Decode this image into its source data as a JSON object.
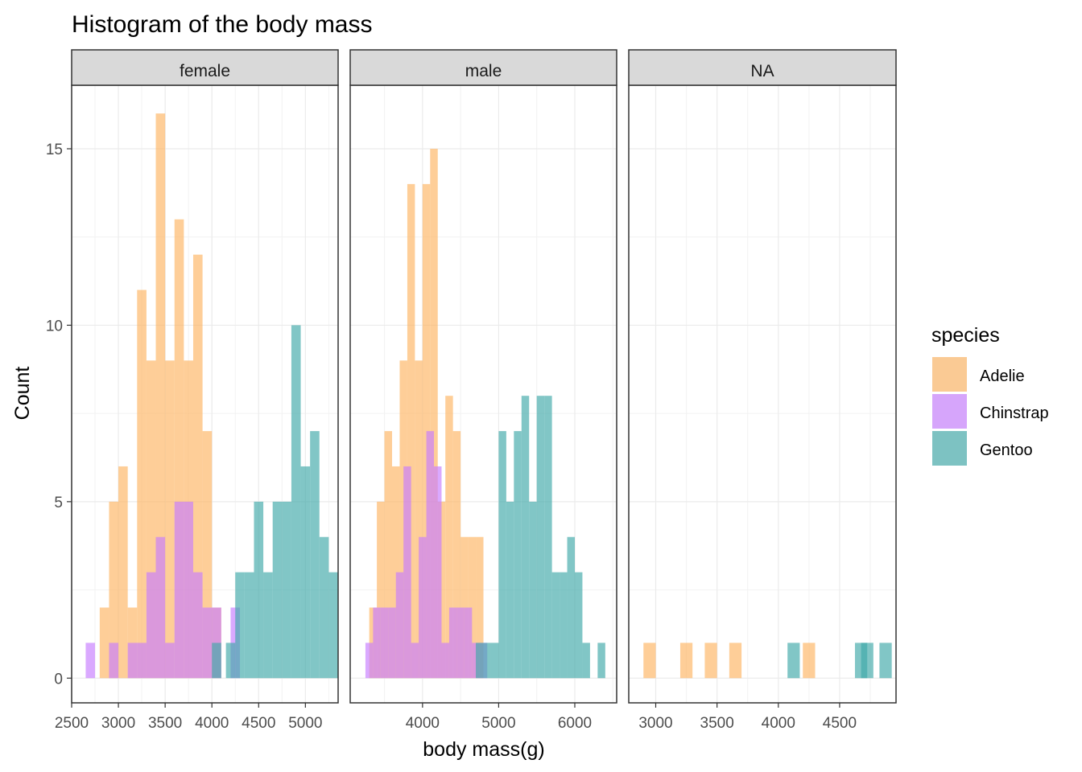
{
  "chart_data": {
    "type": "histogram",
    "title": "Histogram of the body mass",
    "xlabel": "body mass(g)",
    "ylabel": "Count",
    "ylim": [
      -0.7,
      16.8
    ],
    "y_ticks": [
      0,
      5,
      10,
      15
    ],
    "grid": true,
    "legend_position": "right",
    "bin_width": 100,
    "legend": {
      "title": "species",
      "entries": [
        {
          "name": "Adelie",
          "color": "#FDB462"
        },
        {
          "name": "Chinstrap",
          "color": "#C77CFF"
        },
        {
          "name": "Gentoo",
          "color": "#3FA8A8"
        }
      ]
    },
    "panels": [
      {
        "label": "female",
        "xlim": [
          2500,
          5350
        ],
        "x_ticks": [
          2500,
          3000,
          3500,
          4000,
          4500,
          5000
        ],
        "series": [
          {
            "name": "Adelie",
            "bins": [
              [
                2850,
                2
              ],
              [
                2950,
                5
              ],
              [
                3050,
                6
              ],
              [
                3150,
                2
              ],
              [
                3250,
                11
              ],
              [
                3350,
                9
              ],
              [
                3450,
                16
              ],
              [
                3550,
                9
              ],
              [
                3650,
                13
              ],
              [
                3750,
                9
              ],
              [
                3850,
                12
              ],
              [
                3950,
                7
              ],
              [
                4050,
                2
              ]
            ]
          },
          {
            "name": "Chinstrap",
            "bins": [
              [
                2700,
                1
              ],
              [
                2950,
                1
              ],
              [
                3150,
                1
              ],
              [
                3250,
                1
              ],
              [
                3350,
                3
              ],
              [
                3450,
                4
              ],
              [
                3550,
                1
              ],
              [
                3650,
                5
              ],
              [
                3750,
                5
              ],
              [
                3850,
                3
              ],
              [
                3950,
                2
              ],
              [
                4050,
                2
              ],
              [
                4250,
                2
              ]
            ]
          },
          {
            "name": "Gentoo",
            "bins": [
              [
                4050,
                1
              ],
              [
                4200,
                1
              ],
              [
                4300,
                3
              ],
              [
                4400,
                3
              ],
              [
                4500,
                5
              ],
              [
                4600,
                3
              ],
              [
                4700,
                5
              ],
              [
                4800,
                5
              ],
              [
                4900,
                10
              ],
              [
                5000,
                6
              ],
              [
                5100,
                7
              ],
              [
                5200,
                4
              ],
              [
                5300,
                3
              ]
            ]
          }
        ]
      },
      {
        "label": "male",
        "xlim": [
          3050,
          6550
        ],
        "x_ticks": [
          4000,
          5000,
          6000
        ],
        "series": [
          {
            "name": "Adelie",
            "bins": [
              [
                3350,
                2
              ],
              [
                3450,
                5
              ],
              [
                3550,
                7
              ],
              [
                3650,
                6
              ],
              [
                3750,
                9
              ],
              [
                3850,
                14
              ],
              [
                3950,
                9
              ],
              [
                4050,
                14
              ],
              [
                4150,
                15
              ],
              [
                4250,
                5
              ],
              [
                4350,
                8
              ],
              [
                4450,
                7
              ],
              [
                4550,
                4
              ],
              [
                4650,
                4
              ],
              [
                4750,
                4
              ]
            ]
          },
          {
            "name": "Chinstrap",
            "bins": [
              [
                3300,
                1
              ],
              [
                3400,
                2
              ],
              [
                3500,
                2
              ],
              [
                3600,
                2
              ],
              [
                3700,
                3
              ],
              [
                3800,
                6
              ],
              [
                3900,
                1
              ],
              [
                4000,
                4
              ],
              [
                4100,
                7
              ],
              [
                4200,
                6
              ],
              [
                4300,
                1
              ],
              [
                4400,
                2
              ],
              [
                4500,
                2
              ],
              [
                4600,
                2
              ],
              [
                4700,
                1
              ],
              [
                4800,
                1
              ]
            ]
          },
          {
            "name": "Gentoo",
            "bins": [
              [
                4750,
                1
              ],
              [
                4850,
                1
              ],
              [
                4950,
                1
              ],
              [
                5050,
                7
              ],
              [
                5150,
                5
              ],
              [
                5250,
                7
              ],
              [
                5350,
                8
              ],
              [
                5450,
                5
              ],
              [
                5550,
                8
              ],
              [
                5650,
                8
              ],
              [
                5750,
                3
              ],
              [
                5850,
                3
              ],
              [
                5950,
                4
              ],
              [
                6050,
                3
              ],
              [
                6150,
                1
              ],
              [
                6350,
                1
              ]
            ]
          }
        ]
      },
      {
        "label": "NA",
        "xlim": [
          2780,
          4960
        ],
        "x_ticks": [
          3000,
          3500,
          4000,
          4500
        ],
        "series": [
          {
            "name": "Adelie",
            "bins": [
              [
                2950,
                1
              ],
              [
                3250,
                1
              ],
              [
                3450,
                1
              ],
              [
                3650,
                1
              ],
              [
                4250,
                1
              ]
            ]
          },
          {
            "name": "Chinstrap",
            "bins": []
          },
          {
            "name": "Gentoo",
            "bins": [
              [
                4125,
                1
              ],
              [
                4675,
                1
              ],
              [
                4725,
                1
              ],
              [
                4875,
                1
              ]
            ]
          }
        ]
      }
    ]
  }
}
